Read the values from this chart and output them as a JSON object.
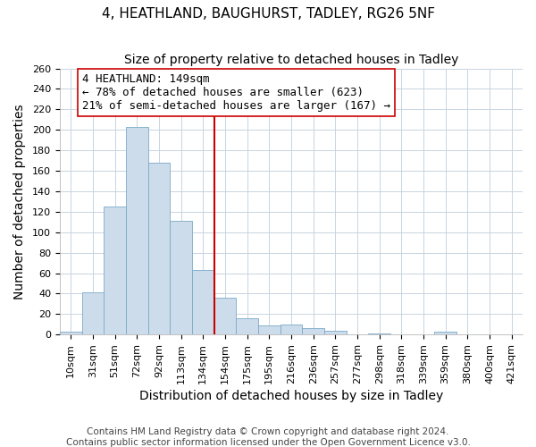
{
  "title": "4, HEATHLAND, BAUGHURST, TADLEY, RG26 5NF",
  "subtitle": "Size of property relative to detached houses in Tadley",
  "xlabel": "Distribution of detached houses by size in Tadley",
  "ylabel": "Number of detached properties",
  "bar_labels": [
    "10sqm",
    "31sqm",
    "51sqm",
    "72sqm",
    "92sqm",
    "113sqm",
    "134sqm",
    "154sqm",
    "175sqm",
    "195sqm",
    "216sqm",
    "236sqm",
    "257sqm",
    "277sqm",
    "298sqm",
    "318sqm",
    "339sqm",
    "359sqm",
    "380sqm",
    "400sqm",
    "421sqm"
  ],
  "bar_values": [
    3,
    41,
    125,
    203,
    168,
    111,
    63,
    36,
    16,
    9,
    10,
    6,
    4,
    0,
    1,
    0,
    0,
    3,
    0,
    0,
    0
  ],
  "bar_color": "#cddceb",
  "bar_edge_color": "#7aaac8",
  "vline_x": 7.0,
  "vline_color": "#cc0000",
  "annotation_title": "4 HEATHLAND: 149sqm",
  "annotation_line1": "← 78% of detached houses are smaller (623)",
  "annotation_line2": "21% of semi-detached houses are larger (167) →",
  "annotation_box_color": "#ffffff",
  "annotation_box_edge": "#cc0000",
  "ylim": [
    0,
    260
  ],
  "yticks": [
    0,
    20,
    40,
    60,
    80,
    100,
    120,
    140,
    160,
    180,
    200,
    220,
    240,
    260
  ],
  "footer1": "Contains HM Land Registry data © Crown copyright and database right 2024.",
  "footer2": "Contains public sector information licensed under the Open Government Licence v3.0.",
  "bg_color": "#ffffff",
  "grid_color": "#c8d4e0",
  "title_fontsize": 11,
  "subtitle_fontsize": 10,
  "axis_label_fontsize": 10,
  "tick_fontsize": 8,
  "annotation_fontsize": 9,
  "footer_fontsize": 7.5
}
